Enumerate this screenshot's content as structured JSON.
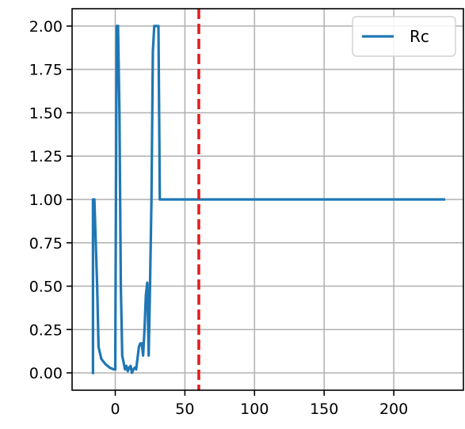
{
  "chart_data": {
    "type": "line",
    "title": "",
    "xlabel": "",
    "ylabel": "",
    "xlim": [
      -31,
      250
    ],
    "ylim": [
      -0.1,
      2.1
    ],
    "xticks": [
      0,
      50,
      100,
      150,
      200
    ],
    "xtick_labels": [
      "0",
      "50",
      "100",
      "150",
      "200"
    ],
    "yticks": [
      0.0,
      0.25,
      0.5,
      0.75,
      1.0,
      1.25,
      1.5,
      1.75,
      2.0
    ],
    "ytick_labels": [
      "0.00",
      "0.25",
      "0.50",
      "0.75",
      "1.00",
      "1.25",
      "1.50",
      "1.75",
      "2.00"
    ],
    "grid": true,
    "legend_location": "upper right",
    "series": [
      {
        "name": "Rc",
        "color": "#1f77b4",
        "points": [
          [
            -16,
            0.0
          ],
          [
            -16,
            1.0
          ],
          [
            -15,
            1.0
          ],
          [
            -13,
            0.5
          ],
          [
            -12,
            0.15
          ],
          [
            -10,
            0.08
          ],
          [
            -7,
            0.05
          ],
          [
            -4,
            0.03
          ],
          [
            -1,
            0.02
          ],
          [
            0,
            0.02
          ],
          [
            1,
            2.0
          ],
          [
            2,
            2.0
          ],
          [
            3,
            1.5
          ],
          [
            4,
            0.5
          ],
          [
            5,
            0.1
          ],
          [
            7,
            0.02
          ],
          [
            8,
            0.04
          ],
          [
            9,
            0.01
          ],
          [
            10,
            0.03
          ],
          [
            11,
            0.04
          ],
          [
            12,
            0.0
          ],
          [
            13,
            0.02
          ],
          [
            14,
            0.03
          ],
          [
            15,
            0.02
          ],
          [
            17,
            0.15
          ],
          [
            18,
            0.17
          ],
          [
            19,
            0.17
          ],
          [
            20,
            0.1
          ],
          [
            21,
            0.25
          ],
          [
            22,
            0.45
          ],
          [
            23,
            0.52
          ],
          [
            24,
            0.1
          ],
          [
            25,
            0.52
          ],
          [
            26,
            1.0
          ],
          [
            27,
            1.85
          ],
          [
            28,
            2.0
          ],
          [
            29,
            2.0
          ],
          [
            30,
            2.0
          ],
          [
            31,
            2.0
          ],
          [
            32,
            1.0
          ],
          [
            236,
            1.0
          ]
        ]
      }
    ],
    "annotations": [
      {
        "kind": "vertical-line",
        "x": 60,
        "style": "dashed",
        "color": "#e31a1c"
      }
    ]
  }
}
